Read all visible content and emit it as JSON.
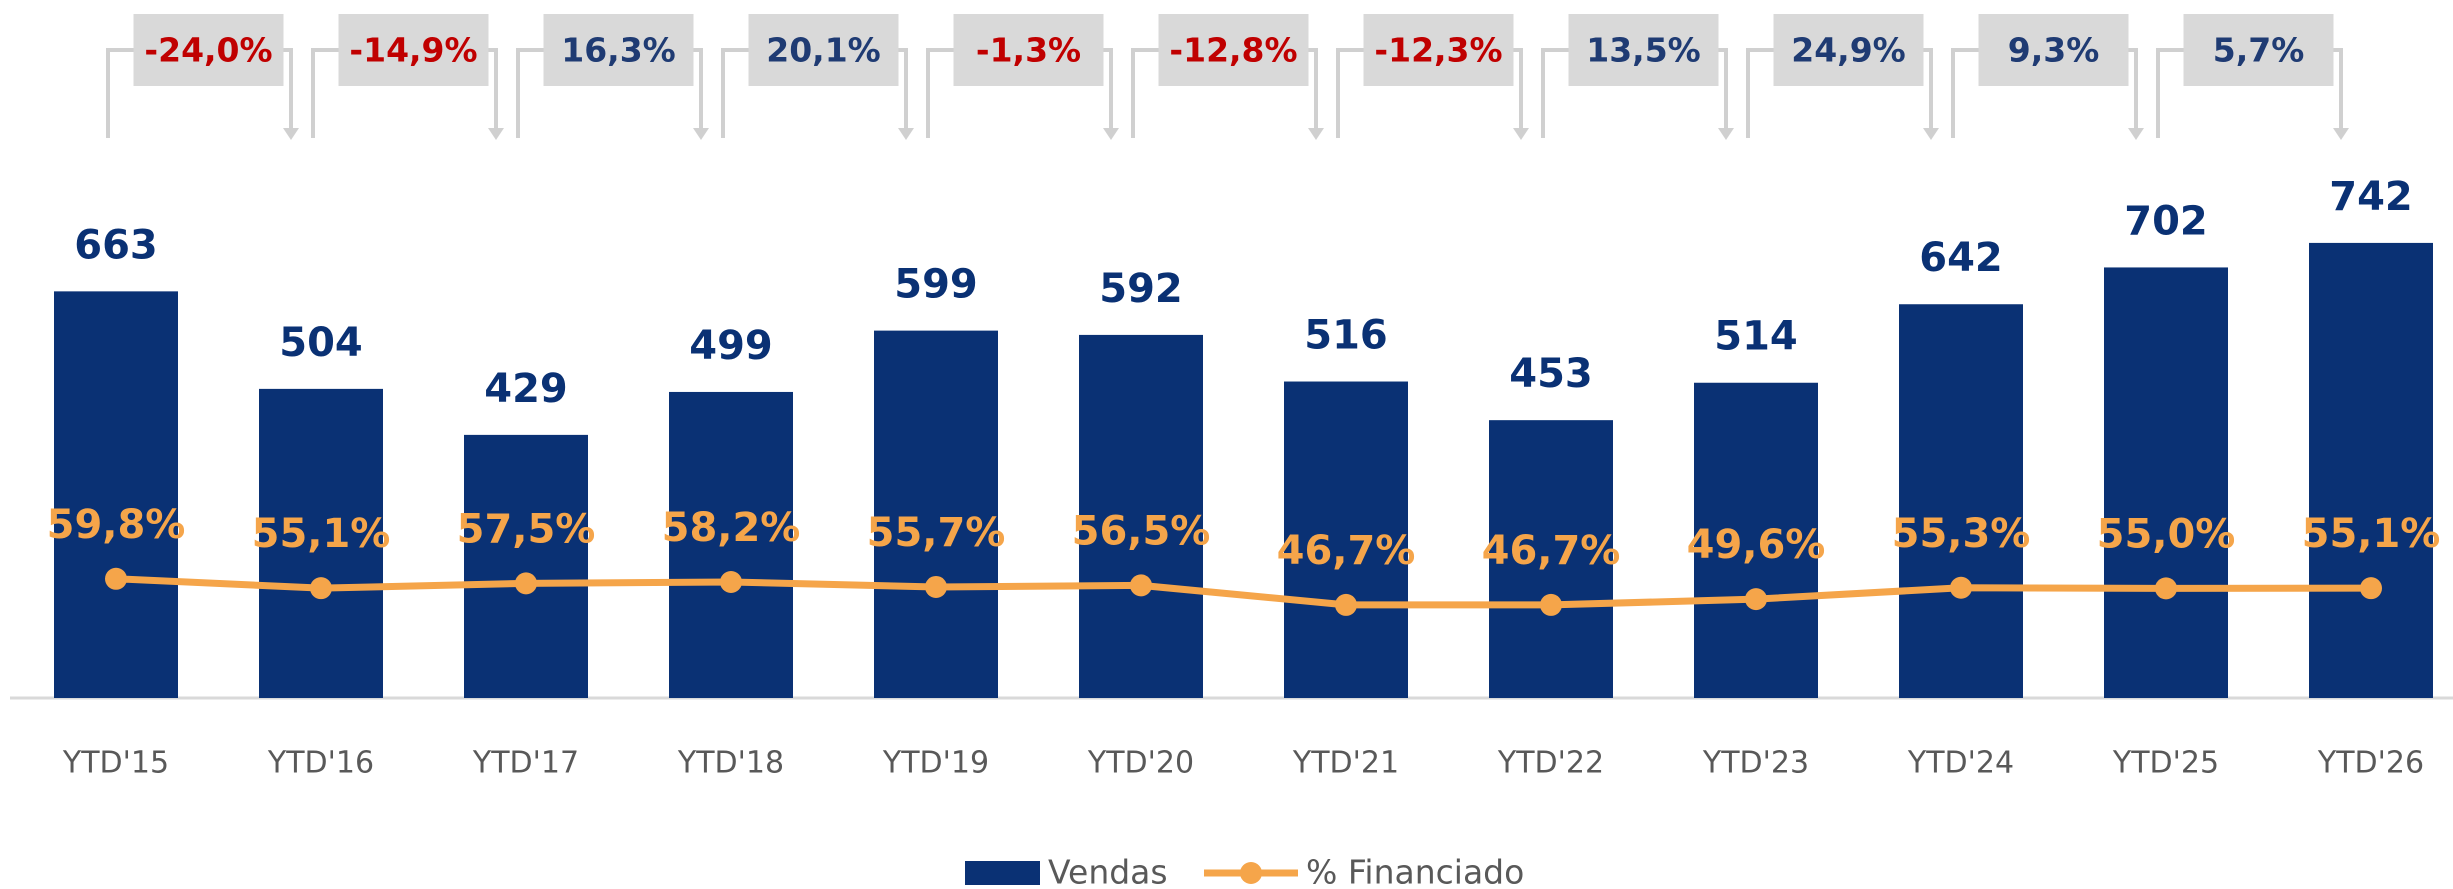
{
  "chart_data": {
    "type": "bar",
    "categories": [
      "YTD'15",
      "YTD'16",
      "YTD'17",
      "YTD'18",
      "YTD'19",
      "YTD'20",
      "YTD'21",
      "YTD'22",
      "YTD'23",
      "YTD'24",
      "YTD'25",
      "YTD'26"
    ],
    "series": [
      {
        "name": "Vendas",
        "color": "#0a3174",
        "values": [
          663,
          504,
          429,
          499,
          599,
          592,
          516,
          453,
          514,
          642,
          702,
          742
        ]
      },
      {
        "name": "% Financiado",
        "color": "#f5a54a",
        "axis": "y2",
        "type": "line",
        "values": [
          59.8,
          55.1,
          57.5,
          58.2,
          55.7,
          56.5,
          46.7,
          46.7,
          49.6,
          55.3,
          55.0,
          55.1
        ],
        "value_labels": [
          "59,8%",
          "55,1%",
          "57,5%",
          "58,2%",
          "55,7%",
          "56,5%",
          "46,7%",
          "46,7%",
          "49,6%",
          "55,3%",
          "55,0%",
          "55,1%"
        ]
      }
    ],
    "growth": {
      "values": [
        -24.0,
        -14.9,
        16.3,
        20.1,
        -1.3,
        -12.8,
        -12.3,
        13.5,
        24.9,
        9.3,
        5.7
      ],
      "value_labels": [
        "-24,0%",
        "-14,9%",
        "16,3%",
        "20,1%",
        "-1,3%",
        "-12,8%",
        "-12,3%",
        "13,5%",
        "24,9%",
        "9,3%",
        "5,7%"
      ],
      "positive_color": "#1f3b73",
      "negative_color": "#c00000"
    },
    "ylim": [
      0,
      975
    ],
    "y2lim": [
      0,
      300
    ],
    "legend": "bottom"
  }
}
